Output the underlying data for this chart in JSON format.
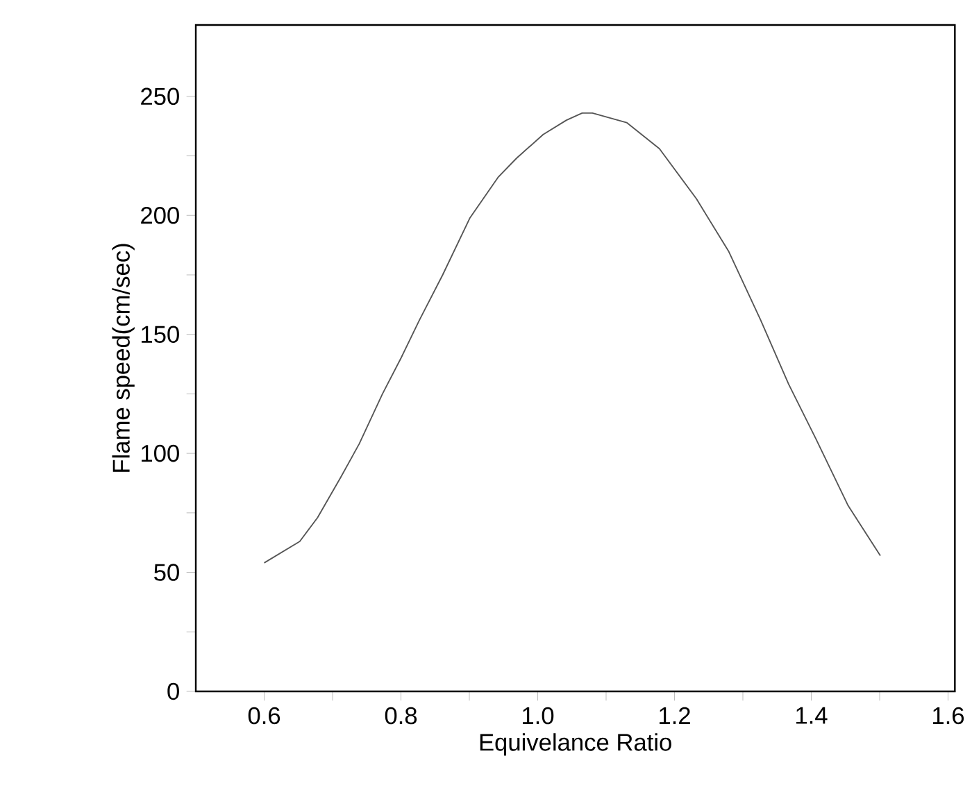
{
  "chart_data": {
    "type": "line",
    "xlabel": "Equivelance Ratio",
    "ylabel": "Flame speed(cm/sec)",
    "xlim": [
      0.5,
      1.61
    ],
    "ylim": [
      0,
      280
    ],
    "xticks": [
      0.6,
      {
        "value": 0.7,
        "label": null
      },
      0.8,
      {
        "value": 0.9,
        "label": null
      },
      {
        "value": 1,
        "label": "1.0"
      },
      {
        "value": 1.1,
        "label": null
      },
      1.2,
      {
        "value": 1.3,
        "label": null
      },
      1.4,
      {
        "value": 1.5,
        "label": null
      },
      1.6
    ],
    "yticks": [
      0,
      {
        "value": 25,
        "label": null
      },
      50,
      {
        "value": 75,
        "label": null
      },
      100,
      {
        "value": 125,
        "label": null
      },
      150,
      {
        "value": 175,
        "label": null
      },
      200,
      {
        "value": 225,
        "label": null
      },
      250
    ],
    "series": [
      {
        "color": "#555555",
        "x": [
          0.6,
          0.652,
          0.678,
          0.712,
          0.739,
          0.773,
          0.8,
          0.827,
          0.861,
          0.901,
          0.942,
          0.969,
          1.008,
          1.042,
          1.065,
          1.08,
          1.13,
          1.178,
          1.232,
          1.279,
          1.326,
          1.367,
          1.407,
          1.454,
          1.501
        ],
        "values": [
          54,
          63,
          73,
          90,
          104,
          125,
          140,
          156,
          175,
          199,
          216,
          224,
          234,
          240,
          243,
          243,
          239,
          228,
          207,
          185,
          156,
          129,
          106,
          78,
          57
        ]
      }
    ],
    "grid": false,
    "marker": "none",
    "line_style": "solid"
  }
}
